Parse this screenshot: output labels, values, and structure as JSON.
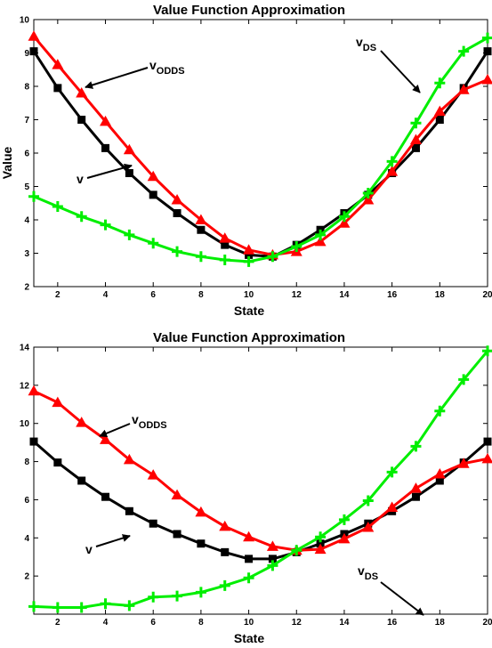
{
  "chart_data": [
    {
      "type": "line",
      "title": "Value Function Approximation",
      "xlabel": "State",
      "ylabel": "Value",
      "xlim": [
        1,
        20
      ],
      "ylim": [
        2,
        10
      ],
      "xticks": [
        2,
        4,
        6,
        8,
        10,
        12,
        14,
        16,
        18,
        20
      ],
      "yticks": [
        2,
        3,
        4,
        5,
        6,
        7,
        8,
        9,
        10
      ],
      "x": [
        1,
        2,
        3,
        4,
        5,
        6,
        7,
        8,
        9,
        10,
        11,
        12,
        13,
        14,
        15,
        16,
        17,
        18,
        19,
        20
      ],
      "series": [
        {
          "key": "v",
          "color": "#000000",
          "marker": "square",
          "values": [
            9.05,
            7.95,
            7.0,
            6.15,
            5.4,
            4.75,
            4.2,
            3.7,
            3.25,
            2.95,
            2.9,
            3.25,
            3.7,
            4.2,
            4.75,
            5.4,
            6.15,
            7.0,
            7.95,
            9.05
          ]
        },
        {
          "key": "v_ODDS",
          "color": "#ff0000",
          "marker": "triangle",
          "values": [
            9.5,
            8.65,
            7.8,
            6.95,
            6.1,
            5.3,
            4.6,
            4.0,
            3.45,
            3.1,
            2.95,
            3.05,
            3.35,
            3.9,
            4.6,
            5.45,
            6.4,
            7.25,
            7.9,
            8.2
          ]
        },
        {
          "key": "v_DS",
          "color": "#00ee00",
          "marker": "plus",
          "values": [
            4.7,
            4.4,
            4.1,
            3.85,
            3.55,
            3.3,
            3.05,
            2.9,
            2.8,
            2.75,
            2.9,
            3.2,
            3.55,
            4.1,
            4.8,
            5.75,
            6.9,
            8.1,
            9.05,
            9.45
          ]
        }
      ],
      "annotations": [
        {
          "base": "v",
          "sub": "ODDS"
        },
        {
          "base": "v",
          "sub": ""
        },
        {
          "base": "v",
          "sub": "DS"
        }
      ]
    },
    {
      "type": "line",
      "title": "Value Function Approximation",
      "xlabel": "State",
      "ylabel": "",
      "xlim": [
        1,
        20
      ],
      "ylim": [
        0,
        14
      ],
      "xticks": [
        2,
        4,
        6,
        8,
        10,
        12,
        14,
        16,
        18,
        20
      ],
      "yticks": [
        2,
        4,
        6,
        8,
        10,
        12,
        14
      ],
      "x": [
        1,
        2,
        3,
        4,
        5,
        6,
        7,
        8,
        9,
        10,
        11,
        12,
        13,
        14,
        15,
        16,
        17,
        18,
        19,
        20
      ],
      "series": [
        {
          "key": "v",
          "color": "#000000",
          "marker": "square",
          "values": [
            9.05,
            7.95,
            7.0,
            6.15,
            5.4,
            4.75,
            4.2,
            3.7,
            3.25,
            2.9,
            2.9,
            3.25,
            3.7,
            4.2,
            4.75,
            5.4,
            6.15,
            7.0,
            7.95,
            9.05
          ]
        },
        {
          "key": "v_ODDS",
          "color": "#ff0000",
          "marker": "triangle",
          "values": [
            11.7,
            11.1,
            10.05,
            9.15,
            8.1,
            7.3,
            6.25,
            5.35,
            4.6,
            4.05,
            3.55,
            3.35,
            3.4,
            3.95,
            4.55,
            5.6,
            6.6,
            7.35,
            7.9,
            8.15
          ]
        },
        {
          "key": "v_DS",
          "color": "#00ee00",
          "marker": "plus",
          "values": [
            0.4,
            0.35,
            0.35,
            0.55,
            0.45,
            0.9,
            0.95,
            1.15,
            1.5,
            1.9,
            2.55,
            3.35,
            4.05,
            4.95,
            5.95,
            7.45,
            8.8,
            10.65,
            12.3,
            13.8
          ]
        }
      ],
      "annotations": [
        {
          "base": "v",
          "sub": "ODDS"
        },
        {
          "base": "v",
          "sub": ""
        },
        {
          "base": "v",
          "sub": "DS"
        }
      ]
    }
  ]
}
